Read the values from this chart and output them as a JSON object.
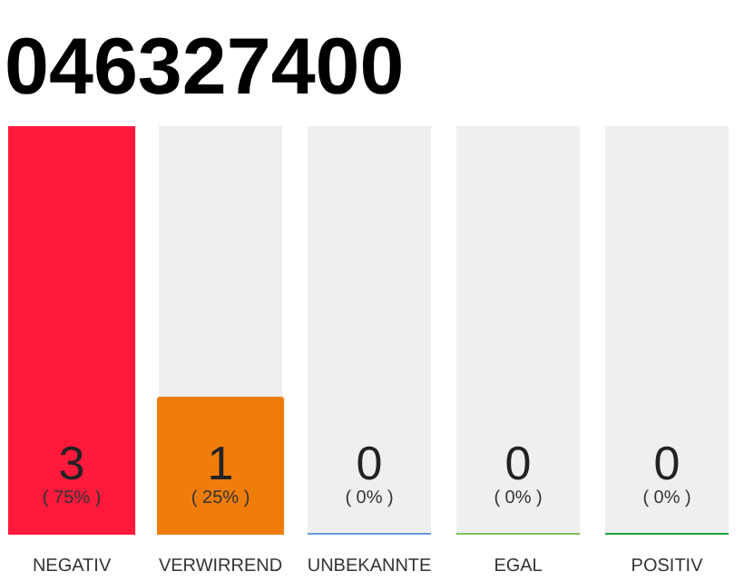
{
  "chart_data": {
    "type": "bar",
    "title": "046327400",
    "categories": [
      "NEGATIV",
      "VERWIRREND",
      "UNBEKANNTE",
      "EGAL",
      "POSITIV"
    ],
    "values": [
      3,
      1,
      0,
      0,
      0
    ],
    "colors": [
      "#ff1a3c",
      "#f07d0a",
      "#6a9be0",
      "#7dc35a",
      "#22a43a"
    ],
    "ylim": [
      0,
      3
    ],
    "value_labels": [
      "3\n( 75% )",
      "1\n( 25% )",
      "0\n( 0% )",
      "0\n( 0% )",
      "0\n( 0% )"
    ],
    "tick_labels": "x",
    "grid": false
  }
}
